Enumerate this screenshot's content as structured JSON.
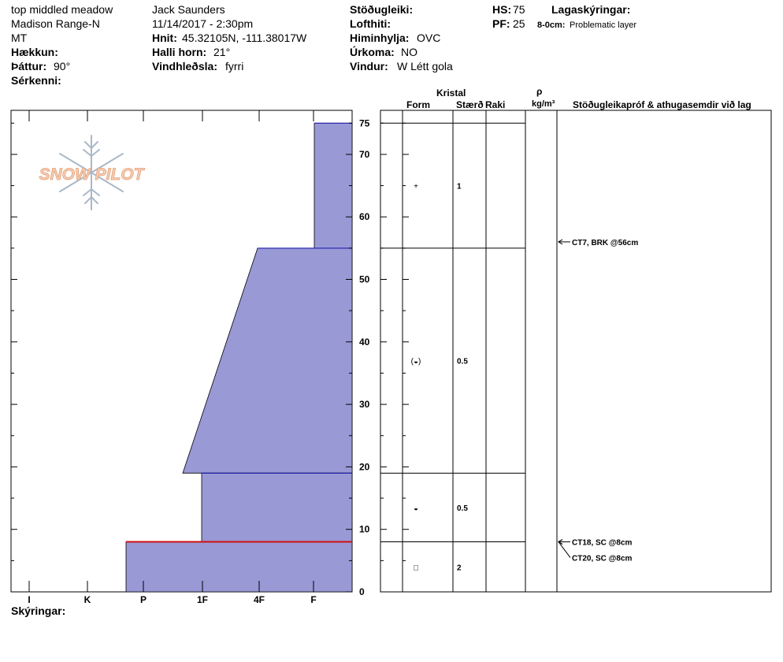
{
  "header": {
    "location": "top middled meadow",
    "range": "Madison Range-N",
    "state": "MT",
    "elevation_label": "Hækkun:",
    "aspect_label": "Þáttur:",
    "aspect_value": "90°",
    "features_label": "Sérkenni:",
    "observer": "Jack Saunders",
    "datetime": "11/14/2017 - 2:30pm",
    "coords_label": "Hnit:",
    "coords_value": "45.32105N, -111.38017W",
    "slope_label": "Halli horn:",
    "slope_value": "21°",
    "wind_loading_label": "Vindhleðsla:",
    "wind_loading_value": "fyrri",
    "stability_label": "Stöðugleiki:",
    "air_temp_label": "Lofthiti:",
    "sky_label": "Himinhylja:",
    "sky_value": "OVC",
    "precip_label": "Úrkoma:",
    "precip_value": "NO",
    "wind_label": "Vindur:",
    "wind_value": "W Létt gola",
    "hs_label": "HS:",
    "hs_value": "75",
    "pf_label": "PF:",
    "pf_value": "25",
    "legend_label": "Lagaskýringar:",
    "problem_depth": "8-0cm:",
    "problem_text": "Problematic layer"
  },
  "logo": {
    "text": "SNOW PILOT"
  },
  "columns": {
    "kristal": "Kristal",
    "form": "Form",
    "size": "Stærð",
    "moisture": "Raki",
    "rho": "ρ",
    "density_unit": "kg/m³",
    "tests": "Stöðugleikapróf & athugasemdir við lag"
  },
  "footer": {
    "notes_label": "Skýringar:"
  },
  "chart_data": {
    "type": "snow-profile",
    "ylim": [
      0,
      75
    ],
    "y_ticks": [
      0,
      10,
      20,
      30,
      40,
      50,
      60,
      70,
      75
    ],
    "hardness_scale": [
      "I",
      "K",
      "P",
      "1F",
      "4F",
      "F"
    ],
    "layers": [
      {
        "top": 75,
        "bottom": 55,
        "hardness_top": "F",
        "hardness_bottom": "F",
        "form": "+",
        "size": "1"
      },
      {
        "top": 55,
        "bottom": 19,
        "hardness_top": "4F",
        "hardness_bottom": "1F-",
        "form": "(◒)",
        "size": "0.5"
      },
      {
        "top": 19,
        "bottom": 8,
        "hardness_top": "1F",
        "hardness_bottom": "1F",
        "form": "◒",
        "size": "0.5"
      },
      {
        "top": 8,
        "bottom": 0,
        "hardness_top": "P",
        "hardness_bottom": "P",
        "form": "□",
        "size": "2"
      }
    ],
    "problematic_layer": {
      "top": 8,
      "bottom": 0
    },
    "tests": [
      {
        "depth": 56,
        "text": "CT7, BRK @56cm"
      },
      {
        "depth": 8,
        "text": "CT18, SC @8cm"
      },
      {
        "depth": 8,
        "text": "CT20, SC @8cm"
      }
    ],
    "colors": {
      "layer_fill": "#9999d6",
      "layer_edge": "#1a1ab8",
      "problem_line": "#d01010"
    }
  }
}
